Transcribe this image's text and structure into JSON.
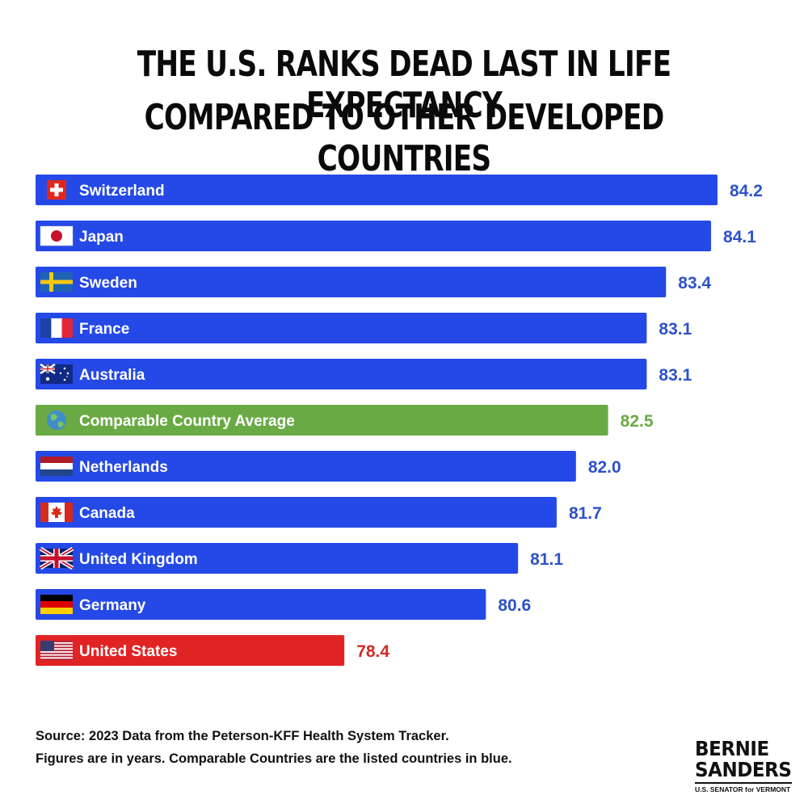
{
  "title": {
    "line1": "THE U.S. RANKS DEAD LAST IN LIFE EXPECTANCY",
    "line2": "COMPARED TO OTHER DEVELOPED COUNTRIES"
  },
  "chart_data": {
    "type": "bar",
    "orientation": "horizontal",
    "categories": [
      "Switzerland",
      "Japan",
      "Sweden",
      "France",
      "Australia",
      "Comparable Country Average",
      "Netherlands",
      "Canada",
      "United Kingdom",
      "Germany",
      "United States"
    ],
    "values": [
      84.2,
      84.1,
      83.4,
      83.1,
      83.1,
      82.5,
      82.0,
      81.7,
      81.1,
      80.6,
      78.4
    ],
    "value_labels": [
      "84.2",
      "84.1",
      "83.4",
      "83.1",
      "83.1",
      "82.5",
      "82.0",
      "81.7",
      "81.1",
      "80.6",
      "78.4"
    ],
    "icons": [
      "swiss-flag",
      "japan-flag",
      "sweden-flag",
      "france-flag",
      "australia-flag",
      "globe",
      "netherlands-flag",
      "canada-flag",
      "uk-flag",
      "germany-flag",
      "us-flag"
    ],
    "bar_colors": [
      "#2549e6",
      "#2549e6",
      "#2549e6",
      "#2549e6",
      "#2549e6",
      "#6aaa45",
      "#2549e6",
      "#2549e6",
      "#2549e6",
      "#2549e6",
      "#e02423"
    ],
    "label_colors": [
      "#2d52c8",
      "#2d52c8",
      "#2d52c8",
      "#2d52c8",
      "#2d52c8",
      "#6aaa45",
      "#2d52c8",
      "#2d52c8",
      "#2d52c8",
      "#2d52c8",
      "#d42a24"
    ],
    "xlim": [
      73.6,
      84.2
    ],
    "grid": false,
    "legend": "none"
  },
  "source": {
    "line1": "Source: 2023 Data from the Peterson-KFF Health System Tracker.",
    "line2": "Figures are in years. Comparable Countries are the listed countries in blue."
  },
  "logo": {
    "line1": "BERNIE",
    "line2": "SANDERS",
    "subtitle": "U.S. SENATOR for VERMONT"
  }
}
